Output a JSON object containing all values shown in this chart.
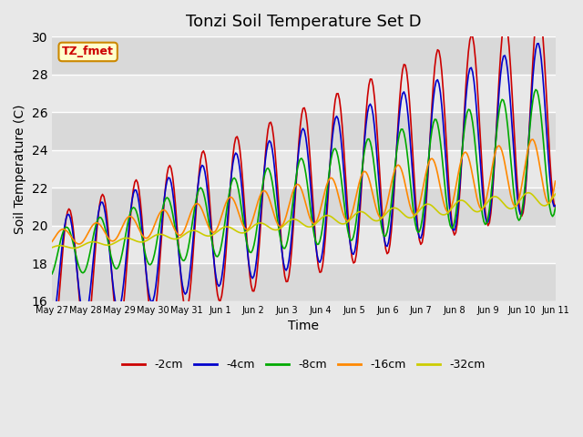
{
  "title": "Tonzi Soil Temperature Set D",
  "xlabel": "Time",
  "ylabel": "Soil Temperature (C)",
  "ylim": [
    16,
    30
  ],
  "yticks": [
    16,
    18,
    20,
    22,
    24,
    26,
    28,
    30
  ],
  "xlabels": [
    "May 27",
    "May 28",
    "May 29",
    "May 30",
    "May 31",
    "Jun 1",
    "Jun 2",
    "Jun 3",
    "Jun 4",
    "Jun 5",
    "Jun 6",
    "Jun 7",
    "Jun 8",
    "Jun 9",
    "Jun 10",
    "Jun 11"
  ],
  "series_colors": [
    "#cc0000",
    "#0000cc",
    "#00aa00",
    "#ff8800",
    "#cccc00"
  ],
  "series_labels": [
    "-2cm",
    "-4cm",
    "-8cm",
    "-16cm",
    "-32cm"
  ],
  "annotation_text": "TZ_fmet",
  "annotation_bg": "#ffffcc",
  "annotation_border": "#cc8800",
  "plot_bg": "#e8e8e8"
}
